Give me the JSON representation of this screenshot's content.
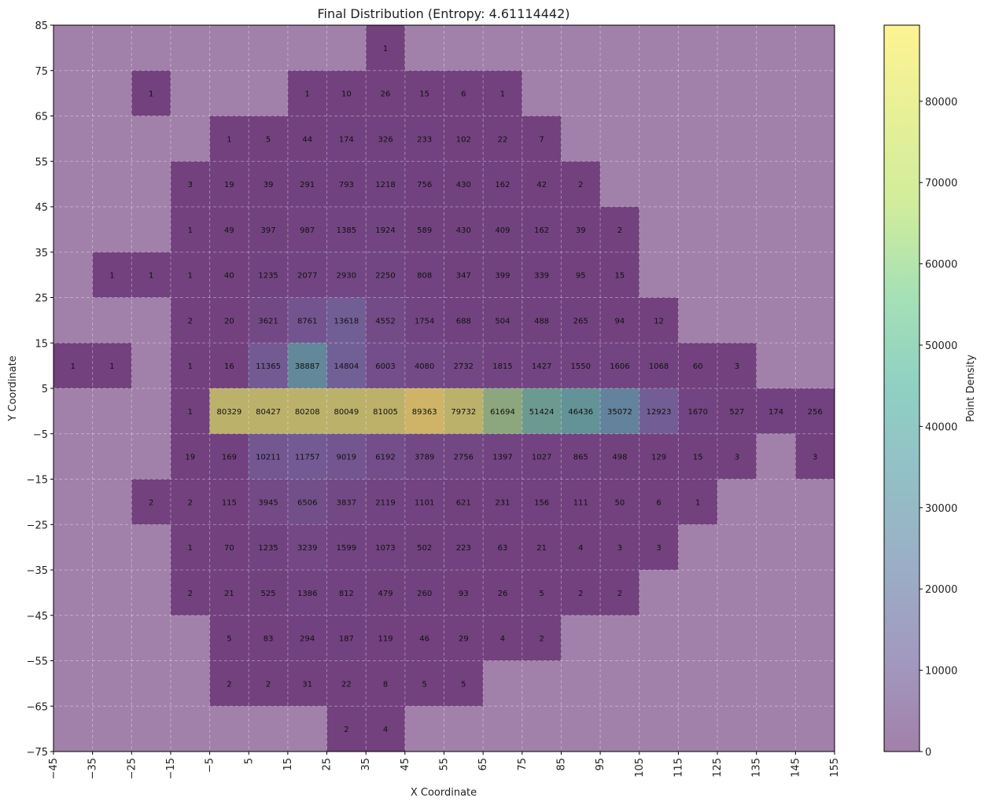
{
  "chart_data": {
    "type": "heatmap",
    "title": "Final Distribution (Entropy: 4.61114442)",
    "xlabel": "X Coordinate",
    "ylabel": "Y Coordinate",
    "colorbar_label": "Point Density",
    "xlim": [
      -45,
      155
    ],
    "ylim": [
      -75,
      85
    ],
    "bin_size": 10,
    "grid": true,
    "x_ticks": [
      -45,
      -35,
      -25,
      -15,
      -5,
      5,
      15,
      25,
      35,
      45,
      55,
      65,
      75,
      85,
      95,
      105,
      115,
      125,
      135,
      145,
      155
    ],
    "y_ticks": [
      85,
      75,
      65,
      55,
      45,
      35,
      25,
      15,
      5,
      -5,
      -15,
      -25,
      -35,
      -45,
      -55,
      -65,
      -75
    ],
    "colorbar_ticks": [
      0,
      10000,
      20000,
      30000,
      40000,
      50000,
      60000,
      70000,
      80000
    ],
    "x_centers": [
      -40,
      -30,
      -20,
      -10,
      0,
      10,
      20,
      30,
      40,
      50,
      60,
      70,
      80,
      90,
      100,
      110,
      120,
      130,
      140,
      150
    ],
    "y_centers": [
      80,
      70,
      60,
      50,
      40,
      30,
      20,
      10,
      0,
      -10,
      -20,
      -30,
      -40,
      -50,
      -60,
      -70
    ],
    "colormap": "viridis",
    "alpha": 0.5,
    "vmin": 0,
    "vmax": 89363,
    "values": [
      [
        null,
        null,
        null,
        null,
        null,
        null,
        null,
        null,
        1,
        null,
        null,
        null,
        null,
        null,
        null,
        null,
        null,
        null,
        null,
        null
      ],
      [
        null,
        null,
        1,
        null,
        null,
        null,
        1,
        10,
        26,
        15,
        6,
        1,
        null,
        null,
        null,
        null,
        null,
        null,
        null,
        null
      ],
      [
        null,
        null,
        null,
        null,
        1,
        5,
        44,
        174,
        326,
        233,
        102,
        22,
        7,
        null,
        null,
        null,
        null,
        null,
        null,
        null
      ],
      [
        null,
        null,
        null,
        3,
        19,
        39,
        291,
        793,
        1218,
        756,
        430,
        162,
        42,
        2,
        null,
        null,
        null,
        null,
        null,
        null
      ],
      [
        null,
        null,
        null,
        1,
        49,
        397,
        987,
        1385,
        1924,
        589,
        430,
        409,
        162,
        39,
        2,
        null,
        null,
        null,
        null,
        null
      ],
      [
        null,
        1,
        1,
        1,
        40,
        1235,
        2077,
        2930,
        2250,
        808,
        347,
        399,
        339,
        95,
        15,
        null,
        null,
        null,
        null,
        null
      ],
      [
        null,
        null,
        null,
        2,
        20,
        3621,
        8761,
        13618,
        4552,
        1754,
        688,
        504,
        488,
        265,
        94,
        12,
        null,
        null,
        null,
        null
      ],
      [
        1,
        1,
        null,
        1,
        16,
        11365,
        38887,
        14804,
        6003,
        4080,
        2732,
        1815,
        1427,
        1550,
        1606,
        1068,
        60,
        3,
        null,
        null
      ],
      [
        null,
        null,
        null,
        1,
        80329,
        80427,
        80208,
        80049,
        81005,
        89363,
        79732,
        61694,
        51424,
        46436,
        35072,
        12923,
        1670,
        527,
        174,
        256
      ],
      [
        null,
        null,
        null,
        19,
        169,
        10211,
        11757,
        9019,
        6192,
        3789,
        2756,
        1397,
        1027,
        865,
        498,
        129,
        15,
        3,
        null,
        3
      ],
      [
        null,
        null,
        2,
        2,
        115,
        3945,
        6506,
        3837,
        2119,
        1101,
        621,
        231,
        156,
        111,
        50,
        6,
        1,
        null,
        null,
        null
      ],
      [
        null,
        null,
        null,
        1,
        70,
        1235,
        3239,
        1599,
        1073,
        502,
        223,
        63,
        21,
        4,
        3,
        3,
        null,
        null,
        null,
        null
      ],
      [
        null,
        null,
        null,
        2,
        21,
        525,
        1386,
        812,
        479,
        260,
        93,
        26,
        5,
        2,
        2,
        null,
        null,
        null,
        null,
        null
      ],
      [
        null,
        null,
        null,
        null,
        5,
        83,
        294,
        187,
        119,
        46,
        29,
        4,
        2,
        null,
        null,
        null,
        null,
        null,
        null,
        null
      ],
      [
        null,
        null,
        null,
        null,
        2,
        2,
        31,
        22,
        8,
        5,
        5,
        null,
        null,
        null,
        null,
        null,
        null,
        null,
        null,
        null
      ],
      [
        null,
        null,
        null,
        null,
        null,
        null,
        null,
        2,
        4,
        null,
        null,
        null,
        null,
        null,
        null,
        null,
        null,
        null,
        null,
        null
      ]
    ]
  }
}
